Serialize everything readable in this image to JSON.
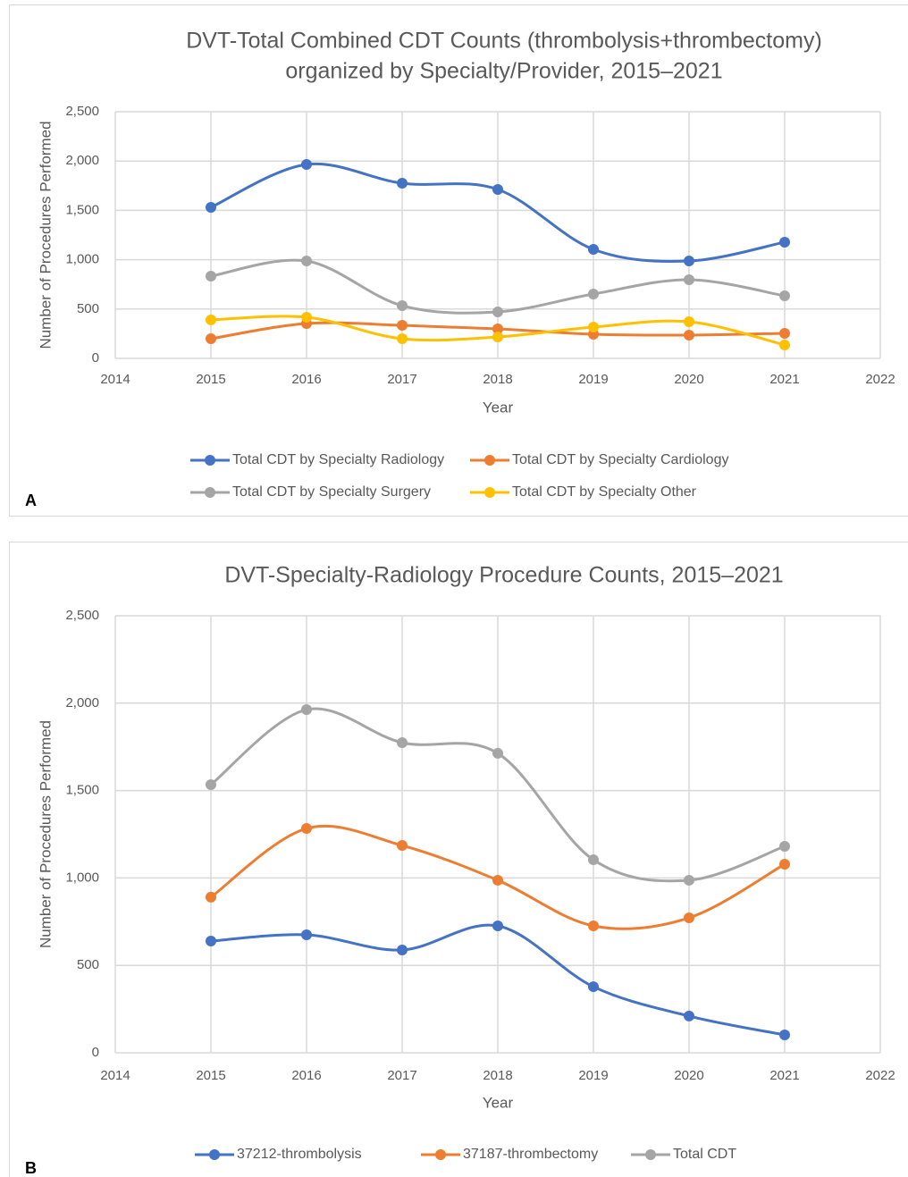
{
  "chart_data": [
    {
      "type": "line",
      "panel_label": "A",
      "title": [
        "DVT-Total Combined CDT Counts (thrombolysis+thrombectomy)",
        "organized by Specialty/Provider, 2015–2021"
      ],
      "xlabel": "Year",
      "ylabel": "Number of Procedures Performed",
      "x": [
        2015,
        2016,
        2017,
        2018,
        2019,
        2020,
        2021
      ],
      "xlim": [
        2014,
        2022
      ],
      "xticks": [
        2014,
        2015,
        2016,
        2017,
        2018,
        2019,
        2020,
        2021,
        2022
      ],
      "ylim": [
        0,
        2500
      ],
      "yticks": [
        0,
        500,
        {
          "value": 1000,
          "label": "1,000"
        },
        {
          "value": 1500,
          "label": "1,500"
        },
        {
          "value": 2000,
          "label": "2,000"
        },
        {
          "value": 2500,
          "label": "2,500"
        }
      ],
      "grid": true,
      "smooth": true,
      "legend": "bottom",
      "series": [
        {
          "name": "Total CDT by Specialty Radiology",
          "color": "#4472c4",
          "values": [
            1531,
            1966,
            1775,
            1712,
            1105,
            987,
            1178
          ]
        },
        {
          "name": "Total CDT by Specialty Cardiology",
          "color": "#ed7d31",
          "values": [
            199,
            353,
            335,
            299,
            245,
            236,
            254
          ]
        },
        {
          "name": "Total CDT by Specialty Surgery",
          "color": "#a5a5a5",
          "values": [
            833,
            987,
            534,
            471,
            652,
            797,
            634
          ]
        },
        {
          "name": "Total CDT by Specialty Other",
          "color": "#ffc000",
          "values": [
            390,
            417,
            199,
            217,
            317,
            371,
            136
          ]
        }
      ]
    },
    {
      "type": "line",
      "panel_label": "B",
      "title": [
        "DVT-Specialty-Radiology Procedure Counts, 2015–2021"
      ],
      "xlabel": "Year",
      "ylabel": "Number of Procedures Performed",
      "x": [
        2015,
        2016,
        2017,
        2018,
        2019,
        2020,
        2021
      ],
      "xlim": [
        2014,
        2022
      ],
      "xticks": [
        2014,
        2015,
        2016,
        2017,
        2018,
        2019,
        2020,
        2021,
        2022
      ],
      "ylim": [
        0,
        2500
      ],
      "yticks": [
        0,
        500,
        {
          "value": 1000,
          "label": "1,000"
        },
        {
          "value": 1500,
          "label": "1,500"
        },
        {
          "value": 2000,
          "label": "2,000"
        },
        {
          "value": 2500,
          "label": "2,500"
        }
      ],
      "grid": true,
      "smooth": true,
      "legend": "bottom",
      "series": [
        {
          "name": "37212-thrombolysis",
          "color": "#4472c4",
          "values": [
            639,
            675,
            588,
            726,
            378,
            210,
            102
          ]
        },
        {
          "name": "37187-thrombectomy",
          "color": "#ed7d31",
          "values": [
            890,
            1283,
            1186,
            987,
            726,
            772,
            1079
          ]
        },
        {
          "name": "Total CDT",
          "color": "#a5a5a5",
          "values": [
            1534,
            1963,
            1774,
            1713,
            1104,
            987,
            1181
          ]
        }
      ]
    }
  ]
}
